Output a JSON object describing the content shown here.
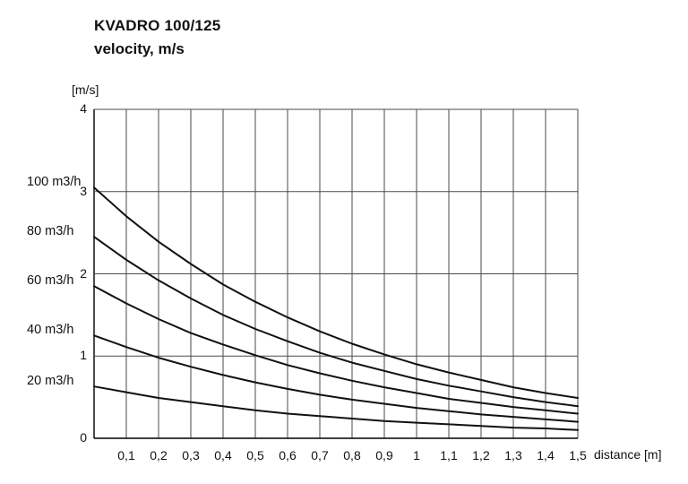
{
  "chart_data": {
    "type": "line",
    "title": "KVADRO 100/125",
    "subtitle": "velocity, m/s",
    "y_axis_unit_label": "[m/s]",
    "x_axis_label": "distance [m]",
    "xlim": [
      0,
      1.5
    ],
    "ylim": [
      0,
      4
    ],
    "grid": true,
    "legend_position": "left-of-curve-starts",
    "x": [
      0,
      0.1,
      0.2,
      0.3,
      0.4,
      0.5,
      0.6,
      0.7,
      0.8,
      0.9,
      1.0,
      1.1,
      1.2,
      1.3,
      1.4,
      1.5
    ],
    "x_ticks": [
      0.1,
      0.2,
      0.3,
      0.4,
      0.5,
      0.6,
      0.7,
      0.8,
      0.9,
      1.0,
      1.1,
      1.2,
      1.3,
      1.4,
      1.5
    ],
    "x_tick_labels": [
      "0,1",
      "0,2",
      "0,3",
      "0,4",
      "0,5",
      "0,6",
      "0,7",
      "0,8",
      "0,9",
      "1",
      "1,1",
      "1,2",
      "1,3",
      "1,4",
      "1,5"
    ],
    "y_ticks": [
      0,
      1,
      2,
      3,
      4
    ],
    "y_tick_labels": [
      "0",
      "1",
      "2",
      "3",
      "4"
    ],
    "line_color": "#111111",
    "grid_color": "#4a4a4a",
    "series": [
      {
        "name": "100 m3/h",
        "values": [
          3.05,
          2.7,
          2.39,
          2.12,
          1.87,
          1.66,
          1.47,
          1.3,
          1.15,
          1.02,
          0.9,
          0.8,
          0.71,
          0.62,
          0.55,
          0.49
        ]
      },
      {
        "name": "80 m3/h",
        "values": [
          2.45,
          2.17,
          1.92,
          1.7,
          1.5,
          1.33,
          1.18,
          1.04,
          0.92,
          0.82,
          0.72,
          0.64,
          0.57,
          0.5,
          0.44,
          0.39
        ]
      },
      {
        "name": "60 m3/h",
        "values": [
          1.85,
          1.64,
          1.45,
          1.28,
          1.14,
          1.01,
          0.89,
          0.79,
          0.7,
          0.62,
          0.55,
          0.48,
          0.43,
          0.38,
          0.34,
          0.3
        ]
      },
      {
        "name": "40 m3/h",
        "values": [
          1.25,
          1.11,
          0.98,
          0.87,
          0.77,
          0.68,
          0.6,
          0.53,
          0.47,
          0.42,
          0.37,
          0.33,
          0.29,
          0.26,
          0.23,
          0.2
        ]
      },
      {
        "name": "20 m3/h",
        "values": [
          0.63,
          0.56,
          0.49,
          0.44,
          0.39,
          0.34,
          0.3,
          0.27,
          0.24,
          0.21,
          0.19,
          0.17,
          0.15,
          0.13,
          0.12,
          0.1
        ]
      }
    ]
  }
}
